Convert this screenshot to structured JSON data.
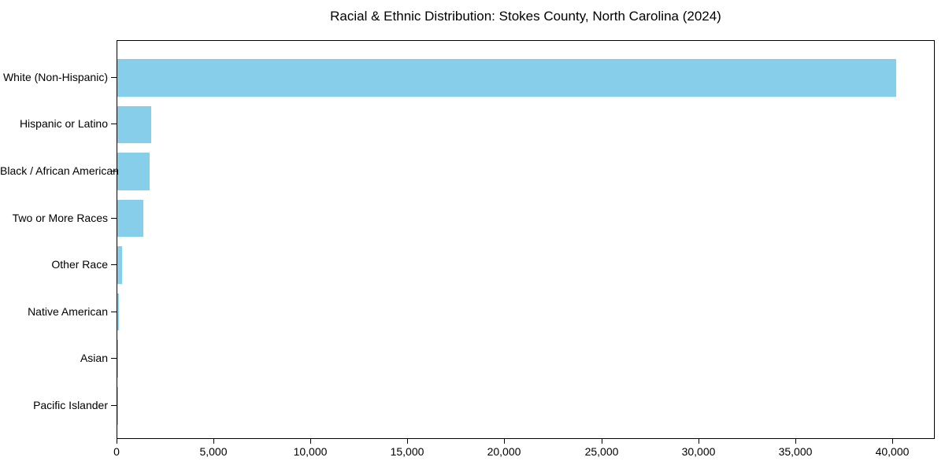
{
  "chart_data": {
    "type": "bar",
    "orientation": "horizontal",
    "title": "Racial & Ethnic Distribution: Stokes County, North Carolina (2024)",
    "categories": [
      "White (Non-Hispanic)",
      "Hispanic or Latino",
      "Black / African American",
      "Two or More Races",
      "Other Race",
      "Native American",
      "Asian",
      "Pacific Islander"
    ],
    "values": [
      40180,
      1750,
      1680,
      1330,
      230,
      70,
      30,
      10
    ],
    "bar_color": "#87CEEB",
    "xlabel": "",
    "ylabel": "",
    "xlim": [
      0,
      42200
    ],
    "x_ticks": [
      0,
      5000,
      10000,
      15000,
      20000,
      25000,
      30000,
      35000,
      40000
    ],
    "x_tick_labels": [
      "0",
      "5,000",
      "10,000",
      "15,000",
      "20,000",
      "25,000",
      "30,000",
      "35,000",
      "40,000"
    ],
    "grid": false,
    "legend": null,
    "axis_color": "#000000",
    "text_color": "#000000",
    "background_color": "#ffffff"
  }
}
